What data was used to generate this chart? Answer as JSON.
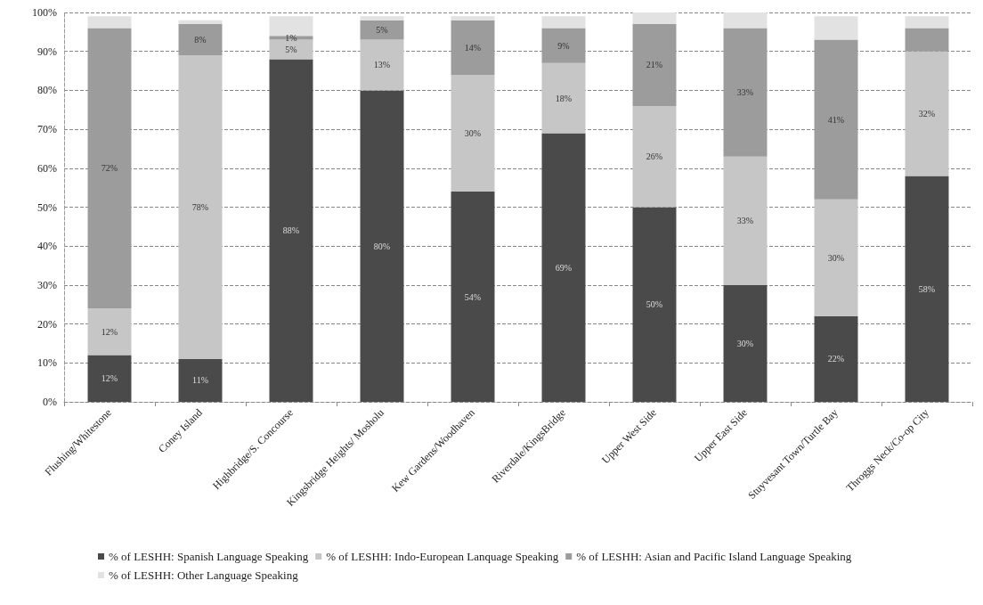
{
  "chart_data": {
    "type": "bar",
    "stacked": true,
    "categories": [
      "Flushing/Whitestone",
      "Coney Island",
      "Highbridge/S. Concourse",
      "Kingsbridge Heights/ Mosholu",
      "Kew Gardens/Woodhaven",
      "Riverdale/KingsBridge",
      "Upper West Side",
      "Upper East Side",
      "Stuyvesant Town/Turtle Bay",
      "Throggs Neck/Co-op City"
    ],
    "series": [
      {
        "name": "% of LESHH: Spanish Language Speaking",
        "color": "#4a4a4a",
        "values": [
          12,
          11,
          88,
          80,
          54,
          69,
          50,
          30,
          22,
          58
        ],
        "value_labels": [
          "12%",
          "11%",
          "88%",
          "80%",
          "54%",
          "69%",
          "50%",
          "30%",
          "22%",
          "58%"
        ]
      },
      {
        "name": "% of LESHH: Indo-European Lanquage Speaking",
        "color": "#c6c6c6",
        "values": [
          12,
          78,
          5,
          13,
          30,
          18,
          26,
          33,
          30,
          32
        ],
        "value_labels": [
          "12%",
          "78%",
          "5%",
          "13%",
          "30%",
          "18%",
          "26%",
          "33%",
          "30%",
          "32%"
        ]
      },
      {
        "name": "% of LESHH: Asian and Pacific Island Language Speaking",
        "color": "#9c9c9c",
        "values": [
          72,
          8,
          1,
          5,
          14,
          9,
          21,
          33,
          41,
          6
        ],
        "value_labels": [
          "72%",
          "8%",
          "1%",
          "5%",
          "14%",
          "9%",
          "21%",
          "33%",
          "41%",
          null
        ]
      },
      {
        "name": "% of LESHH: Other Language Speaking",
        "color": "#e2e2e2",
        "values": [
          3,
          1,
          5,
          1,
          1,
          3,
          3,
          4,
          6,
          3
        ],
        "value_labels": [
          null,
          null,
          null,
          null,
          null,
          null,
          null,
          null,
          null,
          null
        ]
      }
    ],
    "ylim": [
      0,
      100
    ],
    "yticks": [
      {
        "value": 0,
        "label": "0%"
      },
      {
        "value": 10,
        "label": "10%"
      },
      {
        "value": 20,
        "label": "20%"
      },
      {
        "value": 30,
        "label": "30%"
      },
      {
        "value": 40,
        "label": "40%"
      },
      {
        "value": 50,
        "label": "50%"
      },
      {
        "value": 60,
        "label": "60%"
      },
      {
        "value": 70,
        "label": "70%"
      },
      {
        "value": 80,
        "label": "80%"
      },
      {
        "value": 90,
        "label": "90%"
      },
      {
        "value": 100,
        "label": "100%"
      }
    ],
    "grid": "y",
    "line_style": "dashed",
    "legend": "bottom"
  }
}
